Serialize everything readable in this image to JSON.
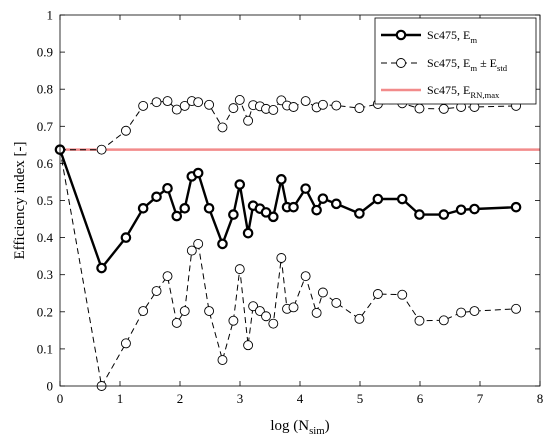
{
  "chart_data": {
    "type": "line",
    "xlabel": "log (N",
    "xlabel_sub": "sim",
    "xlabel_close": ")",
    "ylabel": "Efficiency index [-]",
    "xlim": [
      0,
      8
    ],
    "ylim": [
      0,
      1
    ],
    "x_ticks": [
      "0",
      "1",
      "2",
      "3",
      "4",
      "5",
      "6",
      "7",
      "8"
    ],
    "y_ticks": [
      "0",
      "0.1",
      "0.2",
      "0.3",
      "0.4",
      "0.5",
      "0.6",
      "0.7",
      "0.8",
      "0.9",
      "1"
    ],
    "grid": false,
    "legend_position": "top-right",
    "x": [
      0,
      0.693,
      1.099,
      1.386,
      1.609,
      1.792,
      1.946,
      2.079,
      2.197,
      2.303,
      2.485,
      2.708,
      2.89,
      2.996,
      3.135,
      3.219,
      3.332,
      3.434,
      3.555,
      3.689,
      3.784,
      3.892,
      4.094,
      4.277,
      4.382,
      4.605,
      4.99,
      5.298,
      5.704,
      5.991,
      6.397,
      6.685,
      6.908,
      7.601
    ],
    "series": [
      {
        "name_main": "Sc475, E",
        "name_sub": "m",
        "name_tail": "",
        "style": "bold-circles",
        "color": "#000000",
        "values": [
          0.637,
          0.318,
          0.4,
          0.479,
          0.51,
          0.533,
          0.458,
          0.479,
          0.565,
          0.574,
          0.479,
          0.383,
          0.462,
          0.543,
          0.412,
          0.486,
          0.478,
          0.468,
          0.456,
          0.557,
          0.482,
          0.482,
          0.532,
          0.474,
          0.505,
          0.491,
          0.465,
          0.504,
          0.504,
          0.462,
          0.462,
          0.475,
          0.477,
          0.482
        ]
      },
      {
        "name_main": "Sc475, E",
        "name_sub": "m",
        "name_tail": " ± E",
        "name_tail_sub": "std",
        "style": "dashed-circles",
        "color": "#000000",
        "upper": [
          0.637,
          0.637,
          0.688,
          0.755,
          0.765,
          0.768,
          0.745,
          0.755,
          0.768,
          0.765,
          0.758,
          0.697,
          0.749,
          0.771,
          0.715,
          0.757,
          0.754,
          0.747,
          0.744,
          0.77,
          0.756,
          0.752,
          0.768,
          0.751,
          0.758,
          0.756,
          0.749,
          0.76,
          0.762,
          0.748,
          0.747,
          0.752,
          0.752,
          0.755
        ],
        "lower": [
          0.637,
          0.0,
          0.115,
          0.202,
          0.256,
          0.296,
          0.17,
          0.202,
          0.365,
          0.383,
          0.202,
          0.07,
          0.176,
          0.315,
          0.11,
          0.215,
          0.202,
          0.188,
          0.168,
          0.345,
          0.208,
          0.212,
          0.296,
          0.197,
          0.252,
          0.224,
          0.181,
          0.248,
          0.246,
          0.176,
          0.177,
          0.198,
          0.202,
          0.208
        ]
      },
      {
        "name_main": "Sc475, E",
        "name_sub": "RN,max",
        "name_tail": "",
        "style": "solid-line",
        "color": "#f28b8b",
        "value": 0.637
      }
    ]
  }
}
